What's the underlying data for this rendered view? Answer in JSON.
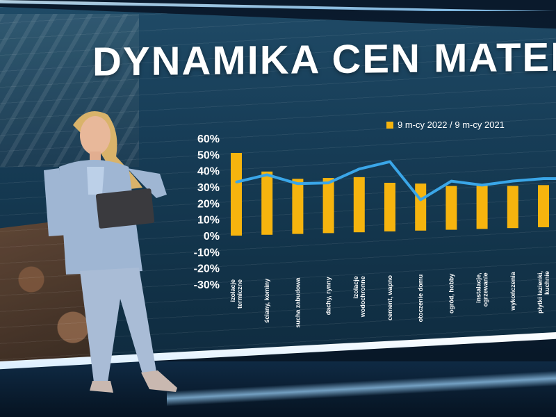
{
  "title": "DYNAMIKA CEN MATERIA",
  "colors": {
    "bar": "#f6b40e",
    "line": "#3aa6e8",
    "text": "#ffffff"
  },
  "chart_data": {
    "type": "bar",
    "legend": [
      "9 m-cy 2022 / 9 m-cy 2021"
    ],
    "legend_position": "top-right",
    "yticks": [
      "60%",
      "50%",
      "40%",
      "30%",
      "20%",
      "10%",
      "0%",
      "-10%",
      "-20%",
      "-30%"
    ],
    "ylim": [
      -30,
      60
    ],
    "categories": [
      "izolacje termiczne",
      "ściany, kominy",
      "sucha zabudowa",
      "dachy, rynny",
      "izolacje wodochronne",
      "cement, wapno",
      "otoczenie domu",
      "ogród, hobby",
      "instalacje, ogrzewanie",
      "wykończenia",
      "płytki łazienki, kuchnie"
    ],
    "series": [
      {
        "name": "9 m-cy 2022 / 9 m-cy 2021",
        "type": "bar",
        "values": [
          51,
          39,
          34,
          34,
          34,
          30,
          29,
          27,
          27,
          26,
          26
        ]
      },
      {
        "type": "line",
        "values": [
          33,
          37,
          31,
          31,
          39,
          43,
          19,
          30,
          27,
          29,
          30
        ]
      }
    ]
  }
}
